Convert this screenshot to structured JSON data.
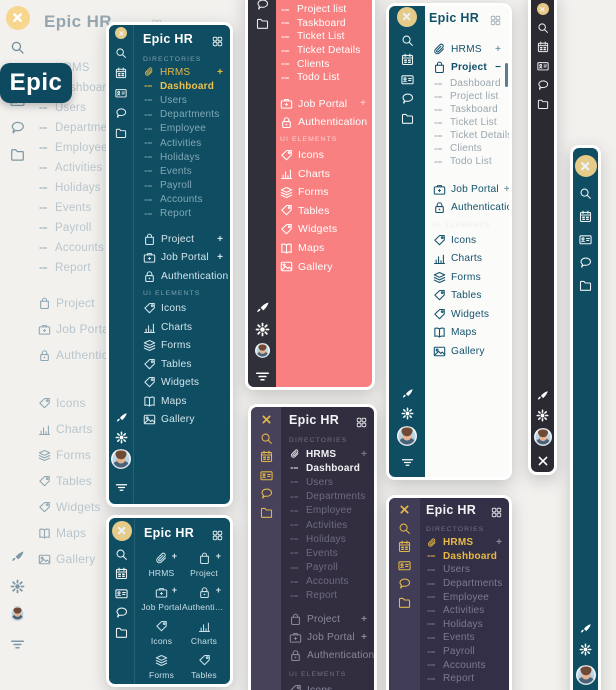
{
  "app": {
    "title": "Epic HR"
  },
  "badge": {
    "text": "Epic"
  },
  "colors": {
    "teal": "#0e4d62",
    "red": "#f98080",
    "dark_rail": "#2b2a33",
    "purple_rail": "#413d56",
    "purple_bg": "#332f47",
    "dark_center_bg": "#322e40",
    "accent_yellow": "#e9b945",
    "logo_circle": "#f7d68d",
    "badge_bg": "#0d4a5f",
    "page_bg": "#f2f1ee"
  },
  "icon_names": [
    "logo-x-icon",
    "search-icon",
    "calendar-icon",
    "id-card-icon",
    "chat-icon",
    "folder-icon",
    "paperclip-icon",
    "submenu-dash-icon",
    "project-icon",
    "briefcase-icon",
    "lock-icon",
    "tag-icon",
    "chart-icon",
    "stack-icon",
    "book-icon",
    "image-icon",
    "grid-toggle-icon",
    "brush-icon",
    "gear-icon",
    "menu-lines-icon",
    "close-icon",
    "user-avatar"
  ],
  "sidebars": {
    "light": {
      "title": "Epic HR",
      "rail_top": [
        "calendar",
        "idcard",
        "chat",
        "folder"
      ],
      "rail_bottom": [
        "brush",
        "gear",
        "avatar",
        "menu"
      ],
      "menu": [
        {
          "label": "HRMS",
          "icon": "paperclip",
          "cls": "sub"
        },
        {
          "label": "Dashboard",
          "icon": "dash",
          "cls": "sub"
        },
        {
          "label": "Users",
          "icon": "dash",
          "cls": "sub"
        },
        {
          "label": "Departments",
          "icon": "dash",
          "cls": "sub"
        },
        {
          "label": "Employee",
          "icon": "dash",
          "cls": "sub"
        },
        {
          "label": "Activities",
          "icon": "dash",
          "cls": "sub"
        },
        {
          "label": "Holidays",
          "icon": "dash",
          "cls": "sub"
        },
        {
          "label": "Events",
          "icon": "dash",
          "cls": "sub"
        },
        {
          "label": "Payroll",
          "icon": "dash",
          "cls": "sub"
        },
        {
          "label": "Accounts",
          "icon": "dash",
          "cls": "sub"
        },
        {
          "label": "Report",
          "icon": "dash",
          "cls": "sub"
        },
        {
          "gap": 12
        },
        {
          "label": "Project",
          "icon": "project",
          "cls": "main"
        },
        {
          "label": "Job Portal",
          "icon": "briefcase",
          "cls": "main"
        },
        {
          "label": "Authentication",
          "icon": "lock",
          "cls": "main"
        },
        {
          "gap": 22
        },
        {
          "label": "Icons",
          "icon": "tag",
          "cls": "main"
        },
        {
          "label": "Charts",
          "icon": "chart",
          "cls": "main"
        },
        {
          "label": "Forms",
          "icon": "stack",
          "cls": "main"
        },
        {
          "label": "Tables",
          "icon": "tag",
          "cls": "main"
        },
        {
          "label": "Widgets",
          "icon": "tag",
          "cls": "main"
        },
        {
          "label": "Maps",
          "icon": "book",
          "cls": "main"
        },
        {
          "label": "Gallery",
          "icon": "image",
          "cls": "main"
        }
      ]
    },
    "tealA": {
      "title": "Epic HR",
      "rail_top": [
        "logo",
        "search",
        "calendar",
        "idcard",
        "chat",
        "folder"
      ],
      "rail_bottom": [
        "brush",
        "gear",
        "avatar",
        "menu"
      ],
      "menu": [
        {
          "section": "DIRECTORIES"
        },
        {
          "label": "HRMS",
          "icon": "paperclip",
          "cls": "sub accent",
          "suffix": "+"
        },
        {
          "label": "Dashboard",
          "icon": "dash",
          "cls": "sub active"
        },
        {
          "label": "Users",
          "icon": "dash",
          "cls": "sub"
        },
        {
          "label": "Departments",
          "icon": "dash",
          "cls": "sub"
        },
        {
          "label": "Employee",
          "icon": "dash",
          "cls": "sub"
        },
        {
          "label": "Activities",
          "icon": "dash",
          "cls": "sub"
        },
        {
          "label": "Holidays",
          "icon": "dash",
          "cls": "sub"
        },
        {
          "label": "Events",
          "icon": "dash",
          "cls": "sub"
        },
        {
          "label": "Payroll",
          "icon": "dash",
          "cls": "sub"
        },
        {
          "label": "Accounts",
          "icon": "dash",
          "cls": "sub"
        },
        {
          "label": "Report",
          "icon": "dash",
          "cls": "sub"
        },
        {
          "gap": 9
        },
        {
          "label": "Project",
          "icon": "project",
          "cls": "main",
          "suffix": "+"
        },
        {
          "label": "Job Portal",
          "icon": "briefcase",
          "cls": "main",
          "suffix": "+"
        },
        {
          "label": "Authentication",
          "icon": "lock",
          "cls": "main",
          "suffix": "+"
        },
        {
          "gap": 2
        },
        {
          "section": "UI ELEMENTS"
        },
        {
          "label": "Icons",
          "icon": "tag",
          "cls": "main"
        },
        {
          "label": "Charts",
          "icon": "chart",
          "cls": "main"
        },
        {
          "label": "Forms",
          "icon": "stack",
          "cls": "main"
        },
        {
          "label": "Tables",
          "icon": "tag",
          "cls": "main"
        },
        {
          "label": "Widgets",
          "icon": "tag",
          "cls": "main"
        },
        {
          "label": "Maps",
          "icon": "book",
          "cls": "main"
        },
        {
          "label": "Gallery",
          "icon": "image",
          "cls": "main"
        }
      ]
    },
    "red": {
      "title": "Epic HR",
      "rail_top": [
        "chat",
        "folder"
      ],
      "rail_bottom": [
        "brush",
        "gear",
        "avatar",
        "menu"
      ],
      "menu": [
        {
          "label": "Project list",
          "icon": "dash",
          "cls": "sub"
        },
        {
          "label": "Taskboard",
          "icon": "dash",
          "cls": "sub"
        },
        {
          "label": "Ticket List",
          "icon": "dash",
          "cls": "sub"
        },
        {
          "label": "Ticket Details",
          "icon": "dash",
          "cls": "sub"
        },
        {
          "label": "Clients",
          "icon": "dash",
          "cls": "sub"
        },
        {
          "label": "Todo List",
          "icon": "dash",
          "cls": "sub"
        },
        {
          "gap": 10
        },
        {
          "label": "Job Portal",
          "icon": "briefcase",
          "cls": "main",
          "suffix": "+"
        },
        {
          "label": "Authentication",
          "icon": "lock",
          "cls": "main",
          "suffix": "+"
        },
        {
          "gap": 2
        },
        {
          "section": "UI ELEMENTS"
        },
        {
          "label": "Icons",
          "icon": "tag",
          "cls": "main"
        },
        {
          "label": "Charts",
          "icon": "chart",
          "cls": "main"
        },
        {
          "label": "Forms",
          "icon": "stack",
          "cls": "main"
        },
        {
          "label": "Tables",
          "icon": "tag",
          "cls": "main"
        },
        {
          "label": "Widgets",
          "icon": "tag",
          "cls": "main"
        },
        {
          "label": "Maps",
          "icon": "book",
          "cls": "main"
        },
        {
          "label": "Gallery",
          "icon": "image",
          "cls": "main"
        }
      ]
    },
    "darkCenter": {
      "title": "Epic HR",
      "rail_top": [
        "xlogo",
        "search",
        "calendar",
        "idcard",
        "chat",
        "folder"
      ],
      "rail_bottom": [],
      "menu": [
        {
          "section": "DIRECTORIES"
        },
        {
          "label": "HRMS",
          "icon": "paperclip",
          "cls": "sub strong",
          "suffix": "+"
        },
        {
          "label": "Dashboard",
          "icon": "dash",
          "cls": "sub strong"
        },
        {
          "label": "Users",
          "icon": "dash",
          "cls": "sub"
        },
        {
          "label": "Departments",
          "icon": "dash",
          "cls": "sub"
        },
        {
          "label": "Employee",
          "icon": "dash",
          "cls": "sub"
        },
        {
          "label": "Activities",
          "icon": "dash",
          "cls": "sub"
        },
        {
          "label": "Holidays",
          "icon": "dash",
          "cls": "sub"
        },
        {
          "label": "Events",
          "icon": "dash",
          "cls": "sub"
        },
        {
          "label": "Payroll",
          "icon": "dash",
          "cls": "sub"
        },
        {
          "label": "Accounts",
          "icon": "dash",
          "cls": "sub"
        },
        {
          "label": "Report",
          "icon": "dash",
          "cls": "sub"
        },
        {
          "gap": 7
        },
        {
          "label": "Project",
          "icon": "project",
          "cls": "main",
          "suffix": "+"
        },
        {
          "label": "Job Portal",
          "icon": "briefcase",
          "cls": "main",
          "suffix": "+"
        },
        {
          "label": "Authentication",
          "icon": "lock",
          "cls": "main",
          "suffix": "+"
        },
        {
          "gap": 3
        },
        {
          "section": "UI ELEMENTS"
        },
        {
          "label": "Icons",
          "icon": "tag",
          "cls": "main"
        }
      ]
    },
    "white": {
      "title": "Epic HR",
      "rail_top": [
        "logo",
        "search",
        "calendar",
        "idcard",
        "chat",
        "folder"
      ],
      "rail_bottom": [
        "brush",
        "gear",
        "avatar",
        "menu"
      ],
      "menu": [
        {
          "gap": 10
        },
        {
          "label": "HRMS",
          "icon": "paperclip",
          "cls": "main",
          "suffix": "+"
        },
        {
          "label": "Project",
          "icon": "project",
          "cls": "main active",
          "suffix": "−"
        },
        {
          "label": "Dashboard",
          "icon": "dash",
          "cls": "sub"
        },
        {
          "label": "Project list",
          "icon": "dash",
          "cls": "sub"
        },
        {
          "label": "Taskboard",
          "icon": "dash",
          "cls": "sub"
        },
        {
          "label": "Ticket List",
          "icon": "dash",
          "cls": "sub"
        },
        {
          "label": "Ticket Details",
          "icon": "dash",
          "cls": "sub"
        },
        {
          "label": "Clients",
          "icon": "dash",
          "cls": "sub"
        },
        {
          "label": "Todo List",
          "icon": "dash",
          "cls": "sub"
        },
        {
          "gap": 12
        },
        {
          "label": "Job Portal",
          "icon": "briefcase",
          "cls": "main",
          "suffix": "+"
        },
        {
          "label": "Authentication",
          "icon": "lock",
          "cls": "main",
          "suffix": "+"
        },
        {
          "gap": 2
        },
        {
          "section": "UI ELEMENTS"
        },
        {
          "label": "Icons",
          "icon": "tag",
          "cls": "main"
        },
        {
          "label": "Charts",
          "icon": "chart",
          "cls": "main"
        },
        {
          "label": "Forms",
          "icon": "stack",
          "cls": "main"
        },
        {
          "label": "Tables",
          "icon": "tag",
          "cls": "main"
        },
        {
          "label": "Widgets",
          "icon": "tag",
          "cls": "main"
        },
        {
          "label": "Maps",
          "icon": "book",
          "cls": "main"
        },
        {
          "label": "Gallery",
          "icon": "image",
          "cls": "main"
        }
      ]
    },
    "tealGrid": {
      "title": "Epic HR",
      "rail_top": [
        "logo",
        "search",
        "calendar",
        "idcard",
        "chat",
        "folder"
      ],
      "rail_bottom": [],
      "tiles": [
        {
          "label": "HRMS",
          "icon": "paperclip",
          "suffix": "+"
        },
        {
          "label": "Project",
          "icon": "project",
          "suffix": "+"
        },
        {
          "label": "Job Portal",
          "icon": "briefcase",
          "suffix": "+"
        },
        {
          "label": "Authentication",
          "icon": "lock",
          "suffix": "+"
        },
        {
          "label": "Icons",
          "icon": "tag"
        },
        {
          "label": "Charts",
          "icon": "chart"
        },
        {
          "label": "Forms",
          "icon": "stack"
        },
        {
          "label": "Tables",
          "icon": "tag"
        }
      ]
    },
    "purple": {
      "title": "Epic HR",
      "rail_top": [
        "xlogo",
        "search",
        "calendar",
        "idcard",
        "chat",
        "folder"
      ],
      "rail_bottom": [],
      "menu": [
        {
          "section": "DIRECTORIES"
        },
        {
          "label": "HRMS",
          "icon": "paperclip",
          "cls": "sub accent",
          "suffix": "+"
        },
        {
          "label": "Dashboard",
          "icon": "dash",
          "cls": "sub accent"
        },
        {
          "label": "Users",
          "icon": "dash",
          "cls": "sub"
        },
        {
          "label": "Departments",
          "icon": "dash",
          "cls": "sub"
        },
        {
          "label": "Employee",
          "icon": "dash",
          "cls": "sub"
        },
        {
          "label": "Activities",
          "icon": "dash",
          "cls": "sub"
        },
        {
          "label": "Holidays",
          "icon": "dash",
          "cls": "sub"
        },
        {
          "label": "Events",
          "icon": "dash",
          "cls": "sub"
        },
        {
          "label": "Payroll",
          "icon": "dash",
          "cls": "sub"
        },
        {
          "label": "Accounts",
          "icon": "dash",
          "cls": "sub"
        },
        {
          "label": "Report",
          "icon": "dash",
          "cls": "sub"
        }
      ]
    },
    "darkRail": {
      "rail_top": [
        "logo",
        "search",
        "calendar",
        "idcard",
        "chat",
        "folder"
      ],
      "rail_bottom": [
        "brush",
        "gear",
        "avatar",
        "close"
      ]
    },
    "tealRail": {
      "rail_top": [
        "logo",
        "search",
        "calendar",
        "idcard",
        "chat",
        "folder"
      ],
      "rail_bottom": [
        "brush",
        "gear",
        "avatar"
      ]
    }
  }
}
